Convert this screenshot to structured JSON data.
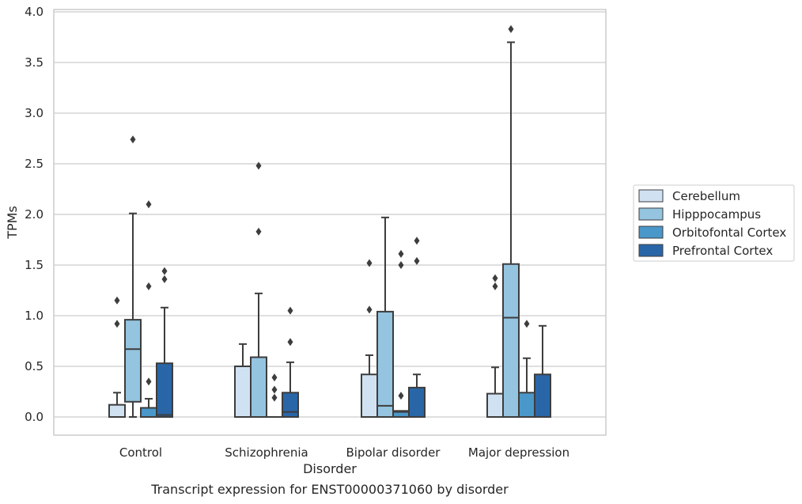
{
  "caption": "Transcript expression for ENST00000371060 by disorder",
  "chart_data": {
    "type": "box",
    "xlabel": "Disorder",
    "ylabel": "TPMs",
    "ylim": [
      -0.18,
      4.03
    ],
    "yticks": [
      "0.0",
      "0.5",
      "1.0",
      "1.5",
      "2.0",
      "2.5",
      "3.0",
      "3.5",
      "4.0"
    ],
    "grid": true,
    "legend_position": "right",
    "categories": [
      "Control",
      "Schizophrenia",
      "Bipolar disorder",
      "Major depression"
    ],
    "series": [
      {
        "name": "Cerebellum",
        "color": "#d0e1f2",
        "boxes": [
          {
            "min": 0,
            "q1": 0,
            "median": 0,
            "q3": 0.12,
            "max": 0.24,
            "outliers": [
              0.92,
              1.15
            ]
          },
          {
            "min": 0,
            "q1": 0,
            "median": 0,
            "q3": 0.5,
            "max": 0.72,
            "outliers": []
          },
          {
            "min": 0,
            "q1": 0,
            "median": 0,
            "q3": 0.42,
            "max": 0.61,
            "outliers": [
              1.06,
              1.52
            ]
          },
          {
            "min": 0,
            "q1": 0,
            "median": 0,
            "q3": 0.23,
            "max": 0.49,
            "outliers": [
              1.29,
              1.37
            ]
          }
        ]
      },
      {
        "name": "Hipppocampus",
        "color": "#94c4df",
        "boxes": [
          {
            "min": 0,
            "q1": 0.15,
            "median": 0.67,
            "q3": 0.96,
            "max": 2.01,
            "outliers": [
              2.74
            ]
          },
          {
            "min": 0,
            "q1": 0,
            "median": 0,
            "q3": 0.59,
            "max": 1.22,
            "outliers": [
              1.83,
              2.48
            ]
          },
          {
            "min": 0,
            "q1": 0,
            "median": 0.11,
            "q3": 1.04,
            "max": 1.97,
            "outliers": []
          },
          {
            "min": 0,
            "q1": 0,
            "median": 0.98,
            "q3": 1.51,
            "max": 3.7,
            "outliers": [
              3.83
            ]
          }
        ]
      },
      {
        "name": "Orbitofontal Cortex",
        "color": "#4a98c9",
        "boxes": [
          {
            "min": 0,
            "q1": 0,
            "median": 0,
            "q3": 0.09,
            "max": 0.18,
            "outliers": [
              0.35,
              1.29,
              2.1
            ]
          },
          {
            "min": 0,
            "q1": 0,
            "median": 0,
            "q3": 0,
            "max": 0,
            "outliers": [
              0.19,
              0.27,
              0.39
            ]
          },
          {
            "min": 0,
            "q1": 0,
            "median": 0.05,
            "q3": 0.06,
            "max": 0.06,
            "outliers": [
              0.21,
              1.5,
              1.61
            ]
          },
          {
            "min": 0,
            "q1": 0,
            "median": 0,
            "q3": 0.24,
            "max": 0.58,
            "outliers": [
              0.92
            ]
          }
        ]
      },
      {
        "name": "Prefrontal Cortex",
        "color": "#2966a8",
        "boxes": [
          {
            "min": 0,
            "q1": 0,
            "median": 0.02,
            "q3": 0.53,
            "max": 1.08,
            "outliers": [
              1.36,
              1.44
            ]
          },
          {
            "min": 0,
            "q1": 0,
            "median": 0.05,
            "q3": 0.24,
            "max": 0.54,
            "outliers": [
              0.74,
              1.05
            ]
          },
          {
            "min": 0,
            "q1": 0,
            "median": 0,
            "q3": 0.29,
            "max": 0.42,
            "outliers": [
              1.54,
              1.74
            ]
          },
          {
            "min": 0,
            "q1": 0,
            "median": 0,
            "q3": 0.42,
            "max": 0.9,
            "outliers": []
          }
        ]
      }
    ]
  }
}
